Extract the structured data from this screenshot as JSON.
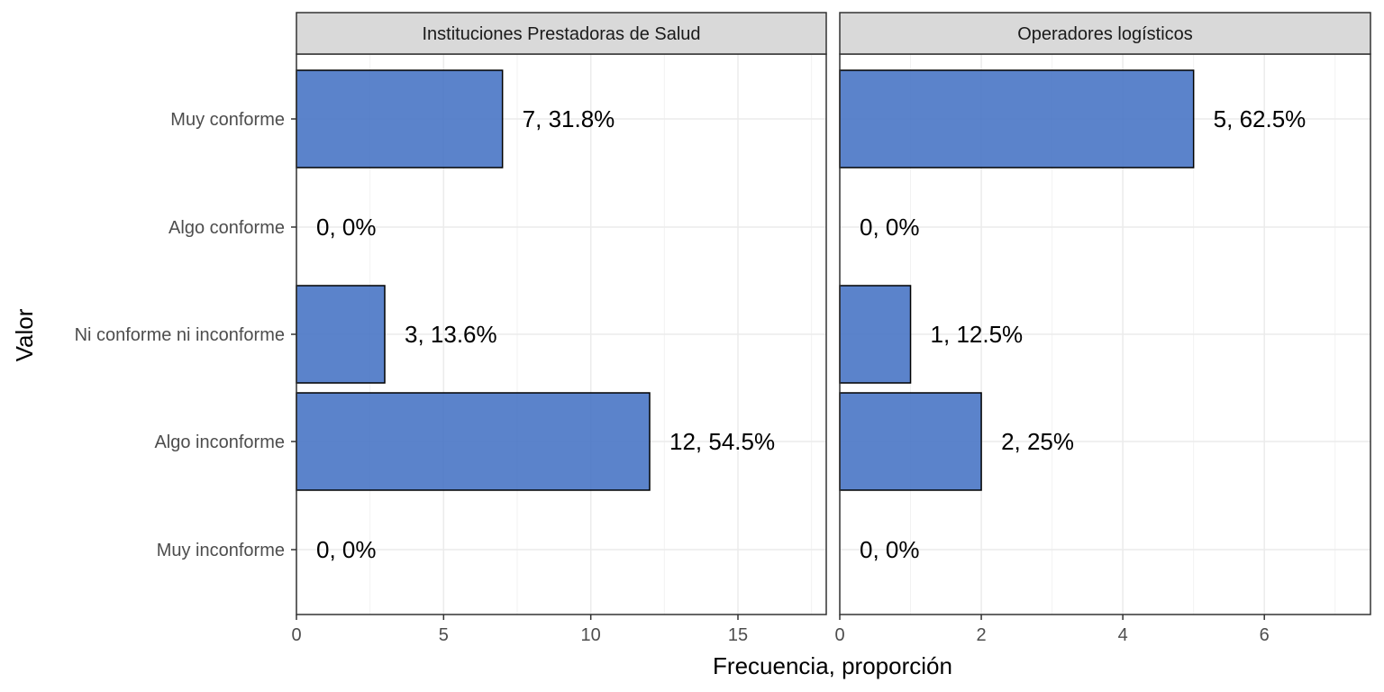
{
  "chart_data": {
    "type": "bar",
    "orientation": "horizontal",
    "xlabel": "Frecuencia, proporción",
    "ylabel": "Valor",
    "categories": [
      "Muy conforme",
      "Algo conforme",
      "Ni conforme ni inconforme",
      "Algo inconforme",
      "Muy inconforme"
    ],
    "bar_color": "#4472C4",
    "grid": true,
    "legend": "none",
    "panels": [
      {
        "title": "Instituciones Prestadoras de Salud",
        "values": [
          7,
          0,
          3,
          12,
          0
        ],
        "labels": [
          "7, 31.8%",
          "0, 0%",
          "3, 13.6%",
          "12, 54.5%",
          "0, 0%"
        ],
        "xlim": [
          0,
          18
        ],
        "xticks": [
          0,
          5,
          10,
          15
        ]
      },
      {
        "title": "Operadores logísticos",
        "values": [
          5,
          0,
          1,
          2,
          0
        ],
        "labels": [
          "5, 62.5%",
          "0, 0%",
          "1, 12.5%",
          "2, 25%",
          "0, 0%"
        ],
        "xlim": [
          0,
          7.5
        ],
        "xticks": [
          0,
          2,
          4,
          6
        ]
      }
    ]
  }
}
